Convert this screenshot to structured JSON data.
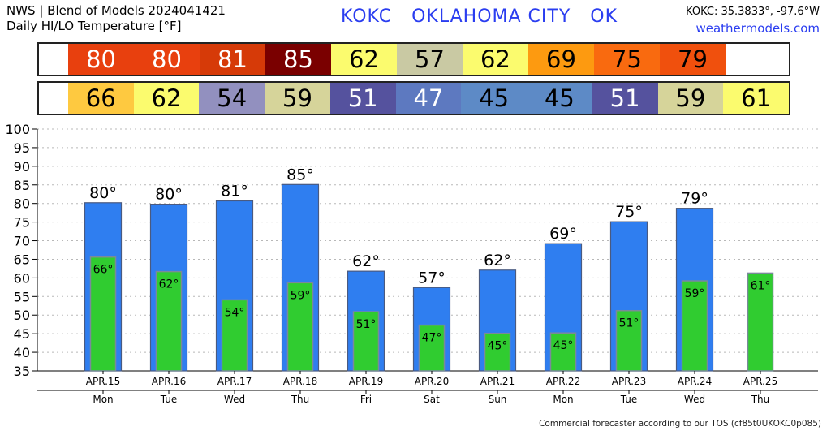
{
  "header": {
    "source_line": "NWS | Blend of Models 2024041421",
    "title_line": "Daily HI/LO Temperature [°F]",
    "station": "KOKC   OKLAHOMA CITY   OK",
    "coords": "KOKC: 35.3833°, -97.6°W",
    "site": "weathermodels.com"
  },
  "footer": "Commercial forecaster according to our TOS (cf85t0UKOKC0p085)",
  "hi_strip": [
    {
      "text": "80",
      "bg": "#e8400e",
      "fg": "#ffffff"
    },
    {
      "text": "80",
      "bg": "#e8400e",
      "fg": "#ffffff"
    },
    {
      "text": "81",
      "bg": "#d63a08",
      "fg": "#ffffff"
    },
    {
      "text": "85",
      "bg": "#7a0000",
      "fg": "#ffffff"
    },
    {
      "text": "62",
      "bg": "#fbfb6e",
      "fg": "#000000"
    },
    {
      "text": "57",
      "bg": "#c9c9a3",
      "fg": "#000000"
    },
    {
      "text": "62",
      "bg": "#fbfb6e",
      "fg": "#000000"
    },
    {
      "text": "69",
      "bg": "#fd9a10",
      "fg": "#000000"
    },
    {
      "text": "75",
      "bg": "#f96a0f",
      "fg": "#000000"
    },
    {
      "text": "79",
      "bg": "#f0500d",
      "fg": "#000000"
    }
  ],
  "lo_strip": [
    {
      "text": "66",
      "bg": "#fec940",
      "fg": "#000000"
    },
    {
      "text": "62",
      "bg": "#fbfb6e",
      "fg": "#000000"
    },
    {
      "text": "54",
      "bg": "#9290bf",
      "fg": "#000000"
    },
    {
      "text": "59",
      "bg": "#d6d49a",
      "fg": "#000000"
    },
    {
      "text": "51",
      "bg": "#55529e",
      "fg": "#ffffff"
    },
    {
      "text": "47",
      "bg": "#5d79c0",
      "fg": "#ffffff"
    },
    {
      "text": "45",
      "bg": "#5d8ac6",
      "fg": "#000000"
    },
    {
      "text": "45",
      "bg": "#5d8ac6",
      "fg": "#000000"
    },
    {
      "text": "51",
      "bg": "#55529e",
      "fg": "#ffffff"
    },
    {
      "text": "59",
      "bg": "#d6d49a",
      "fg": "#000000"
    },
    {
      "text": "61",
      "bg": "#fbfb6e",
      "fg": "#000000"
    }
  ],
  "chart_data": {
    "type": "bar",
    "categories": [
      "APR.15",
      "APR.16",
      "APR.17",
      "APR.18",
      "APR.19",
      "APR.20",
      "APR.21",
      "APR.22",
      "APR.23",
      "APR.24",
      "APR.25"
    ],
    "weekdays": [
      "Mon",
      "Tue",
      "Wed",
      "Thu",
      "Fri",
      "Sat",
      "Sun",
      "Mon",
      "Tue",
      "Wed",
      "Thu"
    ],
    "series": [
      {
        "values": [
          80.2,
          79.8,
          80.7,
          85.1,
          61.8,
          57.4,
          62.1,
          69.2,
          75.1,
          78.7,
          null
        ],
        "color": "#2f7ef0"
      },
      {
        "values": [
          65.6,
          61.7,
          54.1,
          58.7,
          50.9,
          47.3,
          45.1,
          45.2,
          51.2,
          59.2,
          61.3
        ],
        "color": "#30cc30"
      }
    ],
    "hi_labels": [
      "80°",
      "80°",
      "81°",
      "85°",
      "62°",
      "57°",
      "62°",
      "69°",
      "75°",
      "79°",
      ""
    ],
    "lo_labels": [
      "66°",
      "62°",
      "54°",
      "59°",
      "51°",
      "47°",
      "45°",
      "45°",
      "51°",
      "59°",
      "61°"
    ],
    "ylim": [
      35,
      100
    ],
    "yticks": [
      35,
      40,
      45,
      50,
      55,
      60,
      65,
      70,
      75,
      80,
      85,
      90,
      95,
      100
    ],
    "grid": true,
    "xlabel": "",
    "ylabel": ""
  }
}
